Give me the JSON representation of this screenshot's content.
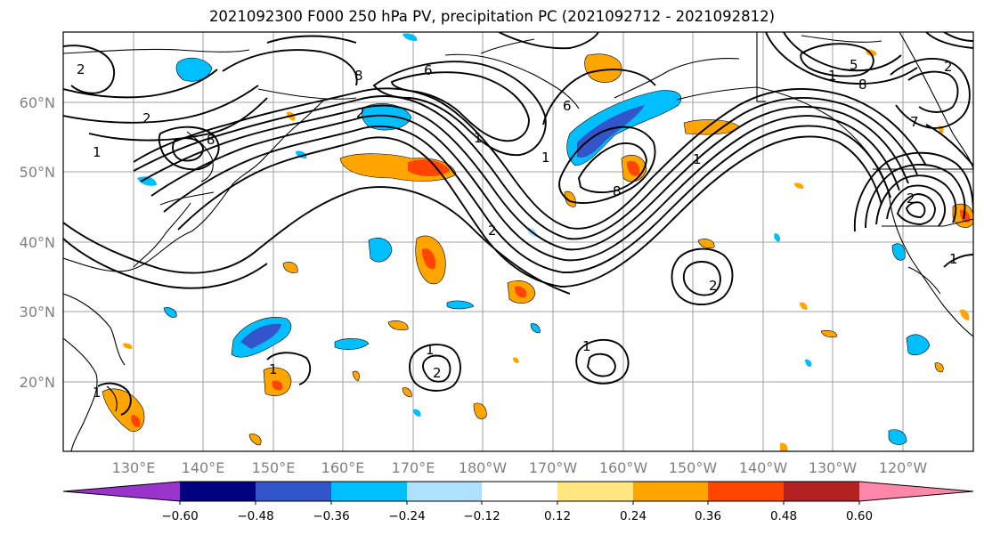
{
  "title": "2021092300 F000 250 hPa PV, precipitation PC (2021092712 - 2021092812)",
  "map": {
    "lat_labels": [
      "60°N",
      "50°N",
      "40°N",
      "30°N",
      "20°N"
    ],
    "lon_labels": [
      "130°E",
      "140°E",
      "150°E",
      "160°E",
      "170°E",
      "180°W",
      "170°W",
      "160°W",
      "150°W",
      "140°W",
      "130°W",
      "120°W"
    ],
    "contour_labels": [
      "2",
      "8",
      "6",
      "2",
      "1",
      "2",
      "8",
      "1",
      "1",
      "6",
      "1",
      "8",
      "8",
      "1",
      "5",
      "2",
      "7",
      "1",
      "2",
      "1",
      "1",
      "2",
      "1",
      "1",
      "2",
      "2"
    ]
  },
  "colorbar": {
    "colors": [
      "#9933cc",
      "#000080",
      "#3355cc",
      "#00bfff",
      "#b0e0ff",
      "#ffffff",
      "#ffe680",
      "#ffa500",
      "#ff4500",
      "#b22222",
      "#ff88aa"
    ],
    "tick_labels": [
      "−0.60",
      "−0.48",
      "−0.36",
      "−0.24",
      "−0.12",
      "0.12",
      "0.24",
      "0.36",
      "0.48",
      "0.60"
    ]
  }
}
